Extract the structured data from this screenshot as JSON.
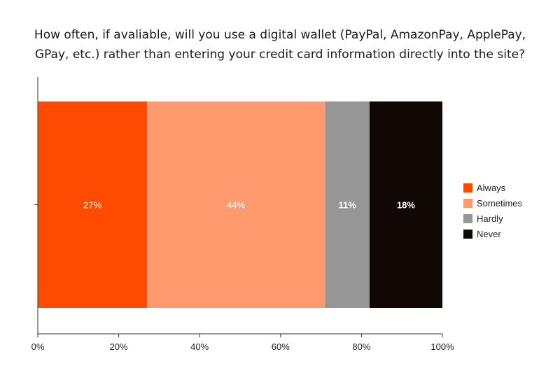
{
  "title_lines": [
    "How often, if avaliable, will you use a digital wallet (PayPal, AmazonPay, ApplePay,",
    "GPay, etc.) rather than entering your credit card information directly into the site?"
  ],
  "chart_data": {
    "type": "bar",
    "orientation": "horizontal",
    "stacked": true,
    "title": "How often, if avaliable, will you use a digital wallet (PayPal, AmazonPay, ApplePay, GPay, etc.) rather than entering your credit card information directly into the site?",
    "categories": [
      ""
    ],
    "series": [
      {
        "name": "Always",
        "values": [
          27
        ],
        "label": "27%",
        "color": "#ff4a00",
        "label_color": "#ffffff"
      },
      {
        "name": "Sometimes",
        "values": [
          44
        ],
        "label": "44%",
        "color": "#ff9a6e",
        "label_color": "#ffffff"
      },
      {
        "name": "Hardly",
        "values": [
          11
        ],
        "label": "11%",
        "color": "#969696",
        "label_color": "#ffffff"
      },
      {
        "name": "Never",
        "values": [
          18
        ],
        "label": "18%",
        "color": "#100804",
        "label_color": "#ffffff"
      }
    ],
    "xlim": [
      0,
      100
    ],
    "x_ticks": [
      "0%",
      "20%",
      "40%",
      "60%",
      "80%",
      "100%"
    ],
    "xlabel": "",
    "ylabel": "",
    "grid": false,
    "legend_position": "right"
  }
}
